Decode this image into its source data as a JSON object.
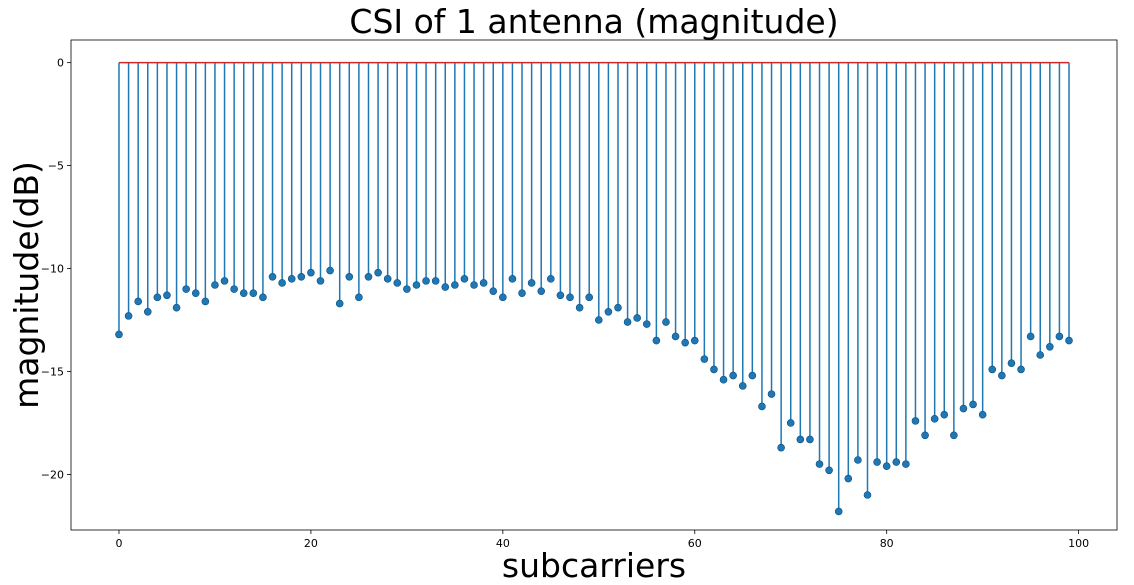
{
  "chart_data": {
    "type": "stem",
    "title": "CSI of 1 antenna (magnitude)",
    "xlabel": "subcarriers",
    "ylabel": "magnitude(dB)",
    "xlim": [
      -5,
      104
    ],
    "ylim": [
      -22.7,
      1.1
    ],
    "xticks": [
      0,
      20,
      40,
      60,
      80,
      100
    ],
    "yticks": [
      0,
      -5,
      -10,
      -15,
      -20
    ],
    "xtick_labels": [
      "0",
      "20",
      "40",
      "60",
      "80",
      "100"
    ],
    "ytick_labels": [
      "0",
      "−5",
      "−10",
      "−15",
      "−20"
    ],
    "baseline": 0,
    "grid": false,
    "colors": {
      "stem": "#1f77b4",
      "baseline": "#d62728",
      "marker": "#1f77b4"
    },
    "x": [
      0,
      1,
      2,
      3,
      4,
      5,
      6,
      7,
      8,
      9,
      10,
      11,
      12,
      13,
      14,
      15,
      16,
      17,
      18,
      19,
      20,
      21,
      22,
      23,
      24,
      25,
      26,
      27,
      28,
      29,
      30,
      31,
      32,
      33,
      34,
      35,
      36,
      37,
      38,
      39,
      40,
      41,
      42,
      43,
      44,
      45,
      46,
      47,
      48,
      49,
      50,
      51,
      52,
      53,
      54,
      55,
      56,
      57,
      58,
      59,
      60,
      61,
      62,
      63,
      64,
      65,
      66,
      67,
      68,
      69,
      70,
      71,
      72,
      73,
      74,
      75,
      76,
      77,
      78,
      79,
      80,
      81,
      82,
      83,
      84,
      85,
      86,
      87,
      88,
      89,
      90,
      91,
      92,
      93,
      94,
      95,
      96,
      97,
      98,
      99
    ],
    "values": [
      -13.2,
      -12.3,
      -11.6,
      -12.1,
      -11.4,
      -11.3,
      -11.9,
      -11.0,
      -11.2,
      -11.6,
      -10.8,
      -10.6,
      -11.0,
      -11.2,
      -11.2,
      -11.4,
      -10.4,
      -10.7,
      -10.5,
      -10.4,
      -10.2,
      -10.6,
      -10.1,
      -11.7,
      -10.4,
      -11.4,
      -10.4,
      -10.2,
      -10.5,
      -10.7,
      -11.0,
      -10.8,
      -10.6,
      -10.6,
      -10.9,
      -10.8,
      -10.5,
      -10.8,
      -10.7,
      -11.1,
      -11.4,
      -10.5,
      -11.2,
      -10.7,
      -11.1,
      -10.5,
      -11.3,
      -11.4,
      -11.9,
      -11.4,
      -12.5,
      -12.1,
      -11.9,
      -12.6,
      -12.4,
      -12.7,
      -13.5,
      -12.6,
      -13.3,
      -13.6,
      -13.5,
      -14.4,
      -14.9,
      -15.4,
      -15.2,
      -15.7,
      -15.2,
      -16.7,
      -16.1,
      -18.7,
      -17.5,
      -18.3,
      -18.3,
      -19.5,
      -19.8,
      -21.8,
      -20.2,
      -19.3,
      -21.0,
      -19.4,
      -19.6,
      -19.4,
      -19.5,
      -17.4,
      -18.1,
      -17.3,
      -17.1,
      -18.1,
      -16.8,
      -16.6,
      -17.1,
      -14.9,
      -15.2,
      -14.6,
      -14.9,
      -13.3,
      -14.2,
      -13.8,
      -13.3,
      -13.5
    ]
  }
}
